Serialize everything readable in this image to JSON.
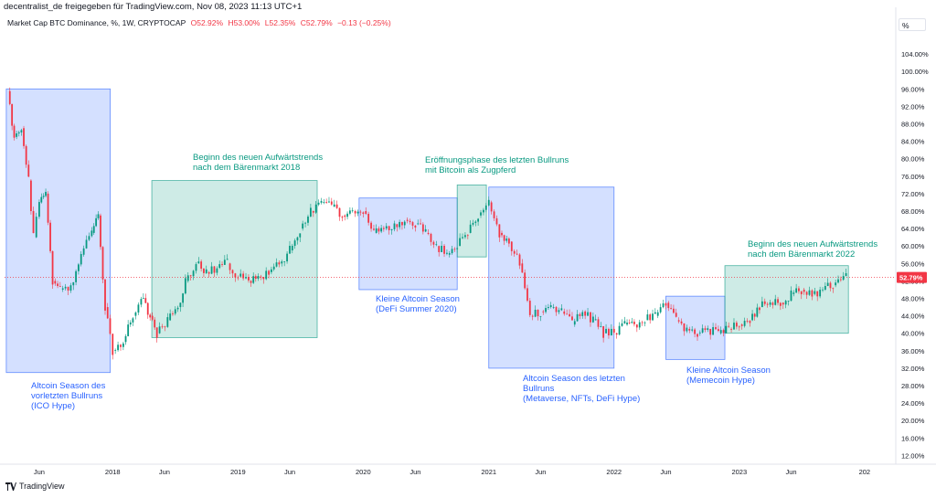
{
  "header": {
    "attribution": "decentralist_de freigegeben für TradingView.com, Nov 08, 2023 11:13 UTC+1",
    "symbol": "Market Cap BTC Dominance, %, 1W, CRYPTOCAP",
    "open": "O52.92%",
    "high": "H53.00%",
    "low": "L52.35%",
    "close": "C52.79%",
    "change": "−0.13 (−0.25%)",
    "unit_button": "%"
  },
  "footer": {
    "brand": "TradingView"
  },
  "colors": {
    "up": "#089981",
    "down": "#f23645",
    "blue_zone": "#2962ff",
    "green_zone": "#089981",
    "price_line": "#f23645"
  },
  "chart_data": {
    "type": "candlestick",
    "title": "Market Cap BTC Dominance, %, 1W, CRYPTOCAP",
    "x_ticks": [
      "Jun",
      "2018",
      "Jun",
      "2019",
      "Jun",
      "2020",
      "Jun",
      "2021",
      "Jun",
      "2022",
      "Jun",
      "2023",
      "Jun",
      "202"
    ],
    "y_ticks": [
      "104.00%",
      "100.00%",
      "96.00%",
      "92.00%",
      "88.00%",
      "84.00%",
      "80.00%",
      "76.00%",
      "72.00%",
      "68.00%",
      "64.00%",
      "60.00%",
      "56.00%",
      "52.00%",
      "48.00%",
      "44.00%",
      "40.00%",
      "36.00%",
      "32.00%",
      "28.00%",
      "24.00%",
      "20.00%",
      "16.00%",
      "12.00%"
    ],
    "ylim": [
      10,
      108
    ],
    "xlim": [
      "2017-02-20",
      "2024-04-01"
    ],
    "last_price": {
      "label": "52.79%",
      "value": 52.79
    },
    "series": [
      {
        "x": "2017-03-01",
        "y": 95.5
      },
      {
        "x": "2017-03-20",
        "y": 85
      },
      {
        "x": "2017-04-10",
        "y": 87
      },
      {
        "x": "2017-05-01",
        "y": 75
      },
      {
        "x": "2017-05-15",
        "y": 62
      },
      {
        "x": "2017-06-01",
        "y": 70
      },
      {
        "x": "2017-06-20",
        "y": 72
      },
      {
        "x": "2017-07-10",
        "y": 52
      },
      {
        "x": "2017-08-01",
        "y": 50
      },
      {
        "x": "2017-09-01",
        "y": 51
      },
      {
        "x": "2017-10-01",
        "y": 58
      },
      {
        "x": "2017-11-01",
        "y": 63
      },
      {
        "x": "2017-11-20",
        "y": 67
      },
      {
        "x": "2017-12-10",
        "y": 46
      },
      {
        "x": "2018-01-01",
        "y": 36
      },
      {
        "x": "2018-02-01",
        "y": 38
      },
      {
        "x": "2018-03-01",
        "y": 44
      },
      {
        "x": "2018-03-25",
        "y": 48
      },
      {
        "x": "2018-04-20",
        "y": 44
      },
      {
        "x": "2018-05-10",
        "y": 40
      },
      {
        "x": "2018-06-10",
        "y": 43
      },
      {
        "x": "2018-07-10",
        "y": 46
      },
      {
        "x": "2018-08-01",
        "y": 52
      },
      {
        "x": "2018-09-01",
        "y": 56
      },
      {
        "x": "2018-10-01",
        "y": 54
      },
      {
        "x": "2018-11-01",
        "y": 55
      },
      {
        "x": "2018-12-01",
        "y": 56
      },
      {
        "x": "2019-01-01",
        "y": 53
      },
      {
        "x": "2019-02-01",
        "y": 52
      },
      {
        "x": "2019-03-01",
        "y": 53
      },
      {
        "x": "2019-04-01",
        "y": 54
      },
      {
        "x": "2019-05-01",
        "y": 56
      },
      {
        "x": "2019-06-01",
        "y": 59
      },
      {
        "x": "2019-07-01",
        "y": 64
      },
      {
        "x": "2019-08-01",
        "y": 68
      },
      {
        "x": "2019-09-01",
        "y": 70
      },
      {
        "x": "2019-10-01",
        "y": 69
      },
      {
        "x": "2019-11-01",
        "y": 67
      },
      {
        "x": "2019-12-01",
        "y": 68
      },
      {
        "x": "2020-01-01",
        "y": 68
      },
      {
        "x": "2020-02-01",
        "y": 63
      },
      {
        "x": "2020-03-01",
        "y": 64
      },
      {
        "x": "2020-04-01",
        "y": 65
      },
      {
        "x": "2020-05-01",
        "y": 66
      },
      {
        "x": "2020-06-01",
        "y": 65
      },
      {
        "x": "2020-07-01",
        "y": 63
      },
      {
        "x": "2020-08-01",
        "y": 60
      },
      {
        "x": "2020-09-01",
        "y": 58
      },
      {
        "x": "2020-10-01",
        "y": 60
      },
      {
        "x": "2020-11-01",
        "y": 63
      },
      {
        "x": "2020-12-01",
        "y": 67
      },
      {
        "x": "2021-01-01",
        "y": 70
      },
      {
        "x": "2021-02-01",
        "y": 63
      },
      {
        "x": "2021-03-01",
        "y": 61
      },
      {
        "x": "2021-04-01",
        "y": 56
      },
      {
        "x": "2021-05-01",
        "y": 44
      },
      {
        "x": "2021-06-01",
        "y": 45
      },
      {
        "x": "2021-07-01",
        "y": 46
      },
      {
        "x": "2021-08-01",
        "y": 45
      },
      {
        "x": "2021-09-01",
        "y": 42
      },
      {
        "x": "2021-10-01",
        "y": 45
      },
      {
        "x": "2021-11-01",
        "y": 43
      },
      {
        "x": "2021-12-01",
        "y": 40
      },
      {
        "x": "2022-01-01",
        "y": 40
      },
      {
        "x": "2022-02-01",
        "y": 42
      },
      {
        "x": "2022-03-01",
        "y": 42
      },
      {
        "x": "2022-04-01",
        "y": 43
      },
      {
        "x": "2022-05-01",
        "y": 44
      },
      {
        "x": "2022-06-01",
        "y": 47
      },
      {
        "x": "2022-07-01",
        "y": 43
      },
      {
        "x": "2022-08-01",
        "y": 41
      },
      {
        "x": "2022-09-01",
        "y": 40
      },
      {
        "x": "2022-10-01",
        "y": 41
      },
      {
        "x": "2022-11-01",
        "y": 40
      },
      {
        "x": "2022-12-01",
        "y": 41
      },
      {
        "x": "2023-01-01",
        "y": 42
      },
      {
        "x": "2023-02-01",
        "y": 43
      },
      {
        "x": "2023-03-01",
        "y": 46
      },
      {
        "x": "2023-04-01",
        "y": 47
      },
      {
        "x": "2023-05-01",
        "y": 47
      },
      {
        "x": "2023-06-01",
        "y": 49
      },
      {
        "x": "2023-07-01",
        "y": 50
      },
      {
        "x": "2023-08-01",
        "y": 49
      },
      {
        "x": "2023-09-01",
        "y": 50
      },
      {
        "x": "2023-10-01",
        "y": 51
      },
      {
        "x": "2023-11-08",
        "y": 52.79
      }
    ],
    "zones": [
      {
        "color": "blue",
        "x0": "2017-02-25",
        "x1": "2017-12-25",
        "y0": 31,
        "y1": 96
      },
      {
        "color": "green",
        "x0": "2018-04-25",
        "x1": "2019-08-20",
        "y0": 39,
        "y1": 75
      },
      {
        "color": "blue",
        "x0": "2019-12-20",
        "x1": "2020-10-01",
        "y0": 50,
        "y1": 71
      },
      {
        "color": "green",
        "x0": "2020-10-01",
        "x1": "2020-12-25",
        "y0": 57.5,
        "y1": 74
      },
      {
        "color": "blue",
        "x0": "2021-01-01",
        "x1": "2022-01-01",
        "y0": 32,
        "y1": 73.5
      },
      {
        "color": "blue",
        "x0": "2022-06-01",
        "x1": "2022-11-20",
        "y0": 34,
        "y1": 48.5
      },
      {
        "color": "green",
        "x0": "2022-11-20",
        "x1": "2023-11-15",
        "y0": 40,
        "y1": 55.5
      }
    ],
    "annotations": [
      {
        "color": "blue",
        "lines": [
          "Altcoin Season des",
          "vorletzten Bullruns",
          "(ICO Hype)"
        ]
      },
      {
        "color": "green",
        "lines": [
          "Beginn des neuen Aufwärtstrends",
          "nach dem Bärenmarkt 2018"
        ]
      },
      {
        "color": "green",
        "lines": [
          "Eröffnungsphase des letzten Bullruns",
          "mit Bitcoin als Zugpferd"
        ]
      },
      {
        "color": "blue",
        "lines": [
          "Kleine Altcoin Season",
          "(DeFi Summer 2020)"
        ]
      },
      {
        "color": "blue",
        "lines": [
          "Altcoin Season des letzten",
          "Bullruns",
          "(Metaverse, NFTs, DeFi Hype)"
        ]
      },
      {
        "color": "blue",
        "lines": [
          "Kleine Altcoin Season",
          "(Memecoin Hype)"
        ]
      },
      {
        "color": "green",
        "lines": [
          "Beginn des neuen Aufwärtstrends",
          "nach dem Bärenmarkt 2022"
        ]
      }
    ]
  }
}
